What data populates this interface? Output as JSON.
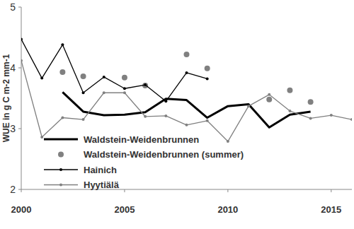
{
  "chart_data": {
    "type": "line",
    "y_label": "WUE in g C m-2 mm-1",
    "x": [
      2000,
      2001,
      2002,
      2003,
      2004,
      2005,
      2006,
      2007,
      2008,
      2009,
      2010,
      2011,
      2012,
      2013,
      2014,
      2015,
      2016
    ],
    "xlim": [
      2000,
      2016
    ],
    "xticks": [
      2000,
      2005,
      2010,
      2015
    ],
    "ylim": [
      2,
      5
    ],
    "yticks": [
      2,
      3,
      4,
      5
    ],
    "grid": false,
    "legend": "lower left",
    "series": [
      {
        "name": "Waldstein-Weidenbrunnen",
        "color": "#000000",
        "type": "line",
        "marker": "none",
        "line_style": "thick",
        "values": [
          null,
          null,
          3.6,
          3.28,
          3.22,
          3.23,
          3.27,
          3.49,
          3.47,
          3.18,
          3.37,
          3.4,
          3.02,
          3.23,
          3.28,
          null,
          null
        ]
      },
      {
        "name": "Waldstein-Weidenbrunnen (summer)",
        "color": "#808080",
        "type": "scatter",
        "marker": "circle",
        "values": [
          null,
          null,
          3.93,
          3.86,
          null,
          3.84,
          3.71,
          null,
          4.22,
          3.99,
          null,
          null,
          3.48,
          3.63,
          3.44,
          null,
          null
        ]
      },
      {
        "name": "Hainich",
        "color": "#000000",
        "type": "line",
        "marker": "circle",
        "line_style": "solid",
        "values": [
          4.47,
          3.83,
          4.38,
          3.59,
          3.85,
          3.66,
          3.72,
          3.45,
          3.92,
          3.82,
          null,
          null,
          null,
          null,
          null,
          null,
          null
        ]
      },
      {
        "name": "Hyytiälä",
        "color": "#808080",
        "type": "line",
        "marker": "circle",
        "line_style": "solid",
        "values": [
          4.12,
          2.86,
          3.18,
          3.15,
          3.59,
          3.59,
          3.2,
          3.21,
          3.06,
          3.13,
          2.79,
          3.37,
          3.56,
          3.29,
          3.17,
          3.22,
          3.15
        ]
      }
    ]
  }
}
